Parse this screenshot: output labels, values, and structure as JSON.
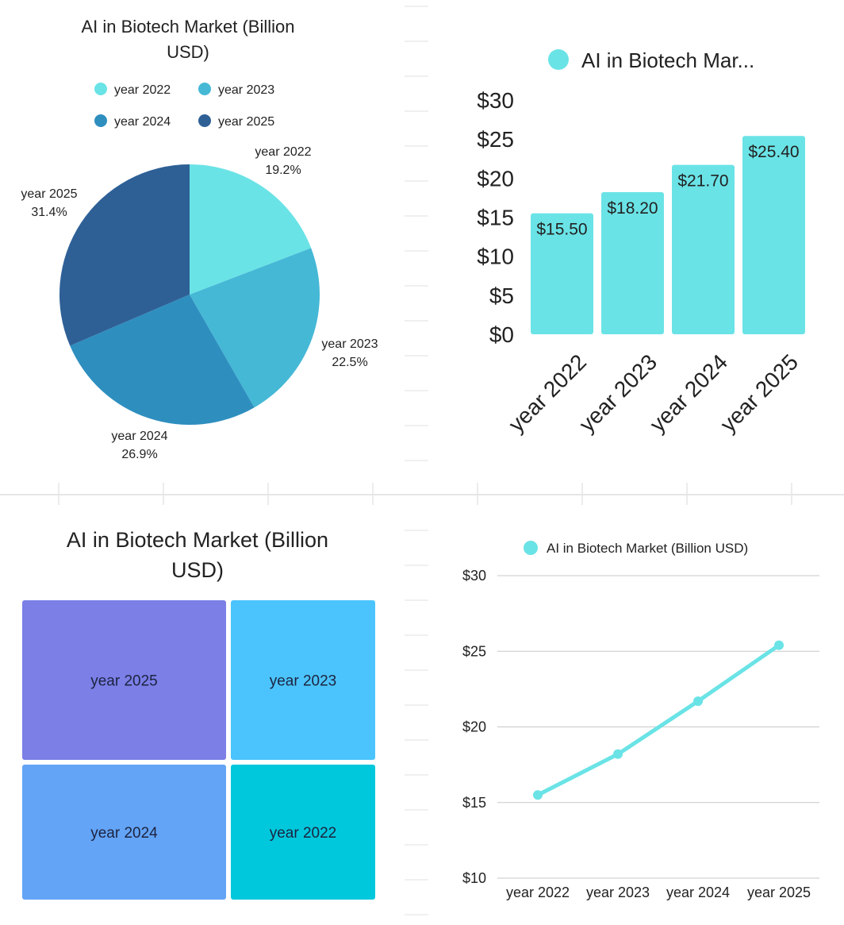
{
  "chart_data": [
    {
      "type": "pie",
      "title": "AI in Biotech Market (Billion USD)",
      "categories": [
        "year 2022",
        "year 2023",
        "year 2024",
        "year 2025"
      ],
      "values": [
        15.5,
        18.2,
        21.7,
        25.4
      ],
      "percent_labels": [
        "19.2%",
        "22.5%",
        "26.9%",
        "31.4%"
      ],
      "colors": [
        "#6ae3e6",
        "#45b8d6",
        "#2e8fbf",
        "#2e6096"
      ],
      "legend": "top"
    },
    {
      "type": "bar",
      "legend_label": "AI in Biotech Mar...",
      "categories": [
        "year 2022",
        "year 2023",
        "year 2024",
        "year 2025"
      ],
      "values": [
        15.5,
        18.2,
        21.7,
        25.4
      ],
      "data_labels": [
        "$15.50",
        "$18.20",
        "$21.70",
        "$25.40"
      ],
      "yticks": [
        "$0",
        "$5",
        "$10",
        "$15",
        "$20",
        "$25",
        "$30"
      ],
      "ylim": [
        0,
        30
      ],
      "color": "#6ae3e6",
      "legend": "top"
    },
    {
      "type": "treemap",
      "title": "AI in Biotech Market (Billion USD)",
      "categories": [
        "year 2025",
        "year 2023",
        "year 2024",
        "year 2022"
      ],
      "values": [
        25.4,
        18.2,
        21.7,
        15.5
      ],
      "colors": [
        "#7b7fe6",
        "#4bc4fd",
        "#63a4f6",
        "#00c8dc"
      ]
    },
    {
      "type": "line",
      "legend_label": "AI in Biotech Market (Billion USD)",
      "categories": [
        "year 2022",
        "year 2023",
        "year 2024",
        "year 2025"
      ],
      "values": [
        15.5,
        18.2,
        21.7,
        25.4
      ],
      "yticks": [
        "$10",
        "$15",
        "$20",
        "$25",
        "$30"
      ],
      "ylim": [
        10,
        30
      ],
      "grid": true,
      "color": "#6ae3e6",
      "legend": "top"
    }
  ]
}
